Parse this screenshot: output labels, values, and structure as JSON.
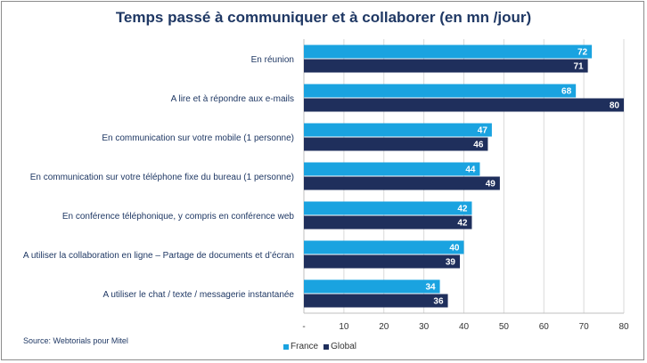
{
  "chart_data": {
    "type": "bar",
    "orientation": "horizontal",
    "title": "Temps passé à communiquer et à collaborer (en mn /jour)",
    "categories": [
      "En réunion",
      "A lire et à répondre aux e-mails",
      "En communication sur votre mobile (1 personne)",
      "En communication sur votre téléphone fixe du bureau (1 personne)",
      "En conférence téléphonique, y compris en conférence web",
      "A utiliser la collaboration en ligne – Partage de documents et d’écran",
      "A utiliser le chat / texte / messagerie instantanée"
    ],
    "series": [
      {
        "name": "France",
        "color": "#1aa3e0",
        "values": [
          72,
          68,
          47,
          44,
          42,
          40,
          34
        ]
      },
      {
        "name": "Global",
        "color": "#1f2f5c",
        "values": [
          71,
          80,
          46,
          49,
          42,
          39,
          36
        ]
      }
    ],
    "xlim": [
      0,
      80
    ],
    "xticks": [
      0,
      10,
      20,
      30,
      40,
      50,
      60,
      70,
      80
    ],
    "xtick_labels": [
      "-",
      "10",
      "20",
      "30",
      "40",
      "50",
      "60",
      "70",
      "80"
    ],
    "xlabel": "",
    "ylabel": "",
    "grid": true,
    "legend": "bottom"
  },
  "source": "Source: Webtorials pour Mitel"
}
